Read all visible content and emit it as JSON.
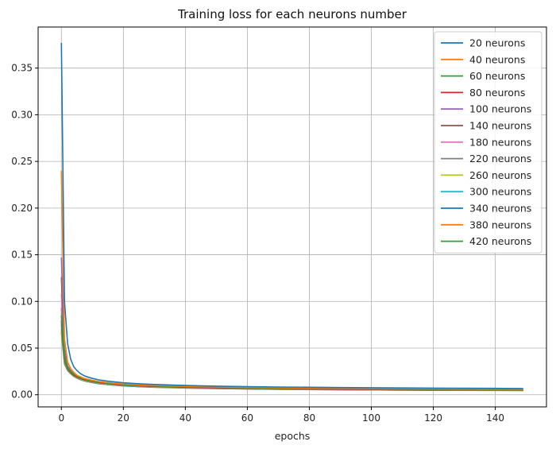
{
  "chart_data": {
    "type": "line",
    "title": "Training loss for each neurons number",
    "xlabel": "epochs",
    "ylabel": "",
    "xlim": [
      -7.5,
      156.5
    ],
    "ylim": [
      -0.013,
      0.394
    ],
    "xticks": [
      0,
      20,
      40,
      60,
      80,
      100,
      120,
      140
    ],
    "yticks": [
      0.0,
      0.05,
      0.1,
      0.15,
      0.2,
      0.25,
      0.3,
      0.35
    ],
    "ytick_format": 2,
    "grid": true,
    "legend_position": "top-right",
    "x": [
      0,
      1,
      2,
      3,
      4,
      5,
      6,
      7,
      8,
      10,
      12,
      15,
      20,
      25,
      30,
      40,
      50,
      60,
      70,
      80,
      90,
      100,
      110,
      120,
      130,
      140,
      149
    ],
    "series": [
      {
        "name": "20 neurons",
        "color": "#1f77b4",
        "values": [
          0.377,
          0.1,
          0.055,
          0.038,
          0.03,
          0.026,
          0.023,
          0.021,
          0.0195,
          0.0175,
          0.016,
          0.0145,
          0.0128,
          0.0118,
          0.011,
          0.0099,
          0.0092,
          0.0087,
          0.0083,
          0.008,
          0.0077,
          0.0075,
          0.0073,
          0.0071,
          0.0069,
          0.0068,
          0.0067
        ]
      },
      {
        "name": "40 neurons",
        "color": "#ff7f0e",
        "values": [
          0.24,
          0.06,
          0.035,
          0.028,
          0.024,
          0.021,
          0.0195,
          0.018,
          0.017,
          0.0155,
          0.0143,
          0.013,
          0.0115,
          0.0106,
          0.0099,
          0.009,
          0.0084,
          0.0079,
          0.0075,
          0.0072,
          0.0069,
          0.0067,
          0.0065,
          0.0063,
          0.0061,
          0.006,
          0.0059
        ]
      },
      {
        "name": "60 neurons",
        "color": "#2ca02c",
        "values": [
          0.085,
          0.04,
          0.029,
          0.025,
          0.022,
          0.02,
          0.0185,
          0.0172,
          0.0162,
          0.0148,
          0.0137,
          0.0124,
          0.011,
          0.0101,
          0.0094,
          0.0085,
          0.0079,
          0.0074,
          0.007,
          0.0067,
          0.0064,
          0.0062,
          0.006,
          0.0058,
          0.0057,
          0.0056,
          0.0055
        ]
      },
      {
        "name": "80 neurons",
        "color": "#d62728",
        "values": [
          0.08,
          0.038,
          0.028,
          0.024,
          0.021,
          0.0192,
          0.0178,
          0.0166,
          0.0157,
          0.0143,
          0.0132,
          0.012,
          0.0106,
          0.0097,
          0.009,
          0.0081,
          0.0075,
          0.007,
          0.0066,
          0.0063,
          0.006,
          0.0058,
          0.0056,
          0.0055,
          0.0054,
          0.0053,
          0.0052
        ]
      },
      {
        "name": "100 neurons",
        "color": "#9467bd",
        "values": [
          0.147,
          0.05,
          0.031,
          0.026,
          0.0225,
          0.0203,
          0.0187,
          0.0174,
          0.0164,
          0.015,
          0.0138,
          0.0125,
          0.011,
          0.0101,
          0.0094,
          0.0084,
          0.0078,
          0.0073,
          0.0069,
          0.0066,
          0.0063,
          0.0061,
          0.0059,
          0.0057,
          0.0056,
          0.0055,
          0.0054
        ]
      },
      {
        "name": "140 neurons",
        "color": "#8c564b",
        "values": [
          0.126,
          0.045,
          0.03,
          0.025,
          0.0218,
          0.0197,
          0.0182,
          0.0169,
          0.0159,
          0.0145,
          0.0134,
          0.0121,
          0.0106,
          0.0097,
          0.009,
          0.0081,
          0.0075,
          0.007,
          0.0066,
          0.0063,
          0.006,
          0.0058,
          0.0056,
          0.0054,
          0.0053,
          0.0052,
          0.0051
        ]
      },
      {
        "name": "180 neurons",
        "color": "#e377c2",
        "values": [
          0.108,
          0.042,
          0.029,
          0.0245,
          0.0214,
          0.0194,
          0.0179,
          0.0166,
          0.0156,
          0.0142,
          0.0131,
          0.0118,
          0.0104,
          0.0095,
          0.0088,
          0.0079,
          0.0073,
          0.0068,
          0.0064,
          0.0061,
          0.0059,
          0.0057,
          0.0055,
          0.0053,
          0.0052,
          0.0051,
          0.005
        ]
      },
      {
        "name": "220 neurons",
        "color": "#7f7f7f",
        "values": [
          0.093,
          0.039,
          0.0285,
          0.0242,
          0.0211,
          0.0191,
          0.0176,
          0.0164,
          0.0154,
          0.014,
          0.0129,
          0.0116,
          0.0102,
          0.0093,
          0.0086,
          0.0077,
          0.0071,
          0.0066,
          0.0063,
          0.006,
          0.0058,
          0.0056,
          0.0054,
          0.0052,
          0.0051,
          0.005,
          0.0049
        ]
      },
      {
        "name": "260 neurons",
        "color": "#bcbd22",
        "values": [
          0.088,
          0.037,
          0.028,
          0.0238,
          0.0208,
          0.0188,
          0.0173,
          0.0161,
          0.0151,
          0.0137,
          0.0126,
          0.0114,
          0.01,
          0.0091,
          0.0084,
          0.0076,
          0.007,
          0.0065,
          0.0062,
          0.0059,
          0.0057,
          0.0055,
          0.0053,
          0.0051,
          0.005,
          0.0049,
          0.0048
        ]
      },
      {
        "name": "300 neurons",
        "color": "#17becf",
        "values": [
          0.078,
          0.036,
          0.0275,
          0.0235,
          0.0205,
          0.0185,
          0.017,
          0.0158,
          0.0149,
          0.0135,
          0.0124,
          0.0112,
          0.0098,
          0.0089,
          0.0083,
          0.0075,
          0.0069,
          0.0064,
          0.0061,
          0.0058,
          0.0056,
          0.0054,
          0.0052,
          0.005,
          0.0049,
          0.0048,
          0.0047
        ]
      },
      {
        "name": "340 neurons",
        "color": "#1f77b4",
        "values": [
          0.075,
          0.035,
          0.027,
          0.0232,
          0.0203,
          0.0183,
          0.0168,
          0.0156,
          0.0147,
          0.0133,
          0.0122,
          0.011,
          0.0097,
          0.0088,
          0.0082,
          0.0074,
          0.0068,
          0.0063,
          0.006,
          0.0057,
          0.0055,
          0.0053,
          0.0051,
          0.0049,
          0.0048,
          0.0047,
          0.0047
        ]
      },
      {
        "name": "380 neurons",
        "color": "#ff7f0e",
        "values": [
          0.07,
          0.034,
          0.0265,
          0.0228,
          0.02,
          0.018,
          0.0166,
          0.0154,
          0.0145,
          0.0131,
          0.012,
          0.0109,
          0.0096,
          0.0087,
          0.0081,
          0.0073,
          0.0067,
          0.0062,
          0.0059,
          0.0056,
          0.0054,
          0.0052,
          0.005,
          0.0049,
          0.0048,
          0.0047,
          0.0046
        ]
      },
      {
        "name": "420 neurons",
        "color": "#2ca02c",
        "values": [
          0.067,
          0.033,
          0.026,
          0.0225,
          0.0197,
          0.0178,
          0.0164,
          0.0152,
          0.0143,
          0.013,
          0.0119,
          0.0108,
          0.0095,
          0.0086,
          0.008,
          0.0072,
          0.0066,
          0.0062,
          0.0058,
          0.0056,
          0.0054,
          0.0052,
          0.005,
          0.0048,
          0.0047,
          0.0046,
          0.0045
        ]
      }
    ]
  }
}
